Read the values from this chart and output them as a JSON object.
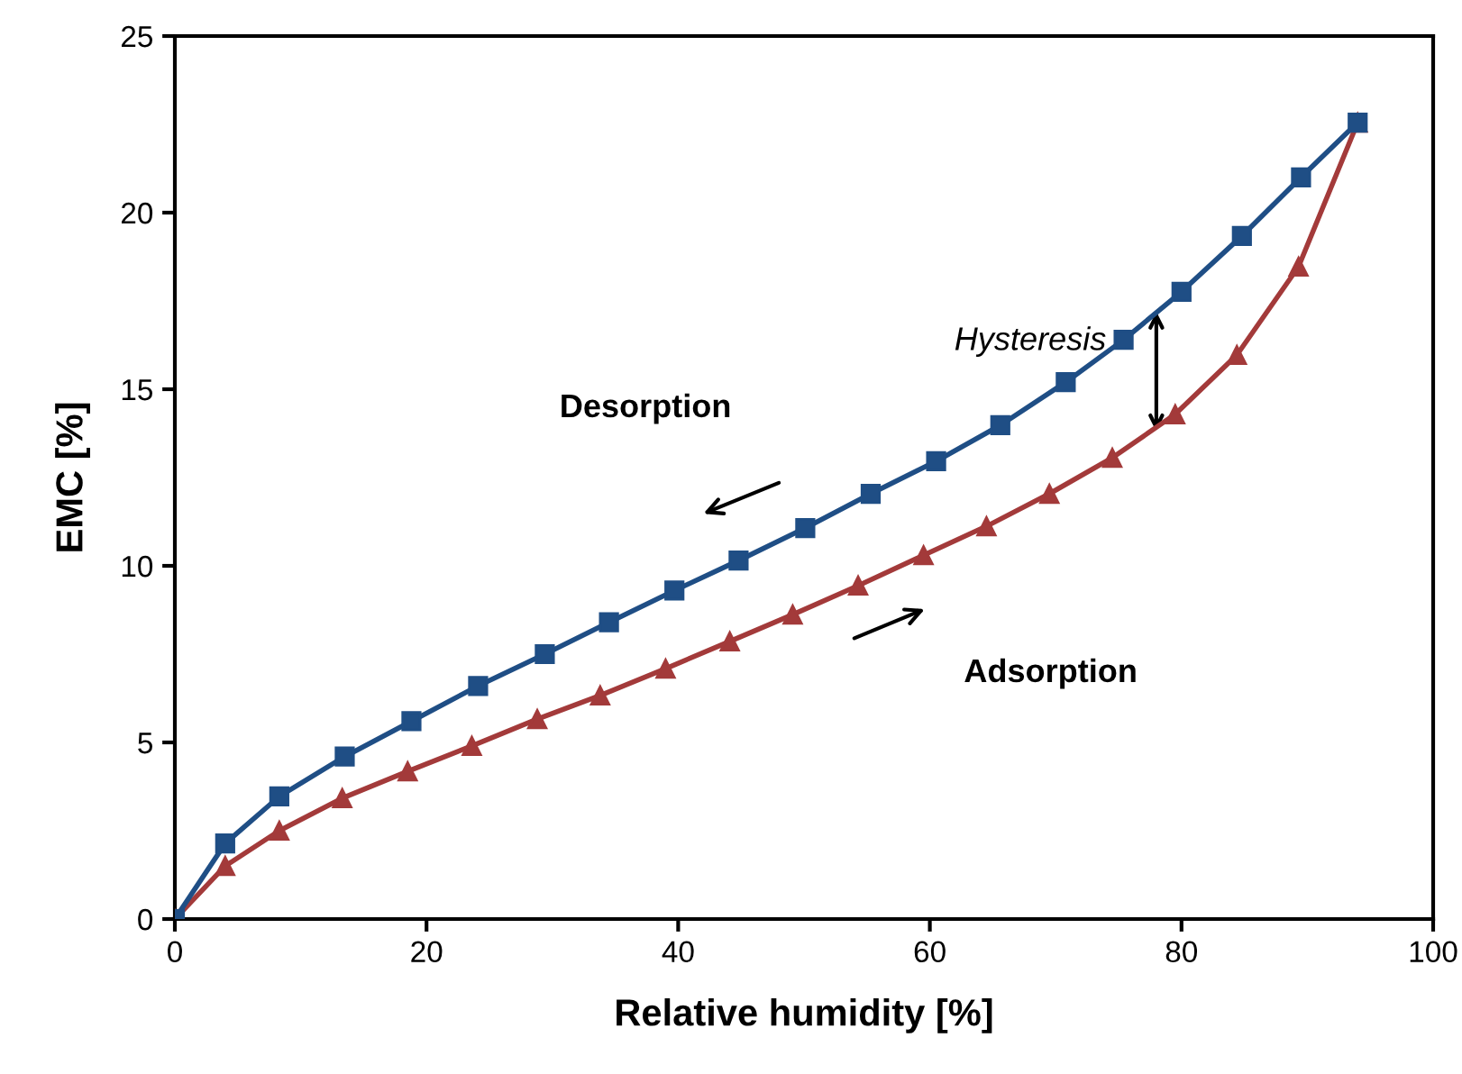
{
  "chart_data": {
    "type": "line",
    "xlabel": "Relative humidity [%]",
    "ylabel": "EMC [%]",
    "xlim": [
      0,
      100
    ],
    "xticks": [
      0,
      20,
      40,
      60,
      80,
      100
    ],
    "ylim": [
      0,
      25
    ],
    "yticks": [
      0,
      5,
      10,
      15,
      20,
      25
    ],
    "grid": false,
    "legend": false,
    "line_style": "solid",
    "annotations": [
      "Desorption",
      "Adsorption",
      {
        "text": "Hysteresis",
        "x": 78,
        "y": 17.2
      }
    ],
    "series": [
      {
        "color": "#1f4e85",
        "marker": "square",
        "x": [
          0,
          4.0,
          8.3,
          13.5,
          18.8,
          24.1,
          29.4,
          34.5,
          39.7,
          44.8,
          50.1,
          55.3,
          60.5,
          65.6,
          70.8,
          75.4,
          80.0,
          84.8,
          89.5,
          94.0
        ],
        "values": [
          0,
          2.14,
          3.47,
          4.6,
          5.6,
          6.6,
          7.5,
          8.4,
          9.3,
          10.15,
          11.07,
          12.04,
          12.96,
          13.98,
          15.2,
          16.4,
          17.76,
          19.34,
          21.0,
          22.55
        ]
      },
      {
        "color": "#a33a3a",
        "marker": "triangle",
        "x": [
          0,
          4.0,
          8.3,
          13.3,
          18.5,
          23.6,
          28.8,
          33.8,
          39.0,
          44.1,
          49.1,
          54.3,
          59.5,
          64.5,
          69.5,
          74.5,
          79.5,
          84.4,
          89.3,
          94.0
        ],
        "values": [
          0,
          1.5,
          2.5,
          3.42,
          4.18,
          4.9,
          5.66,
          6.33,
          7.09,
          7.86,
          8.62,
          9.44,
          10.3,
          11.12,
          12.04,
          13.06,
          14.29,
          15.97,
          18.47,
          22.55
        ]
      }
    ]
  }
}
